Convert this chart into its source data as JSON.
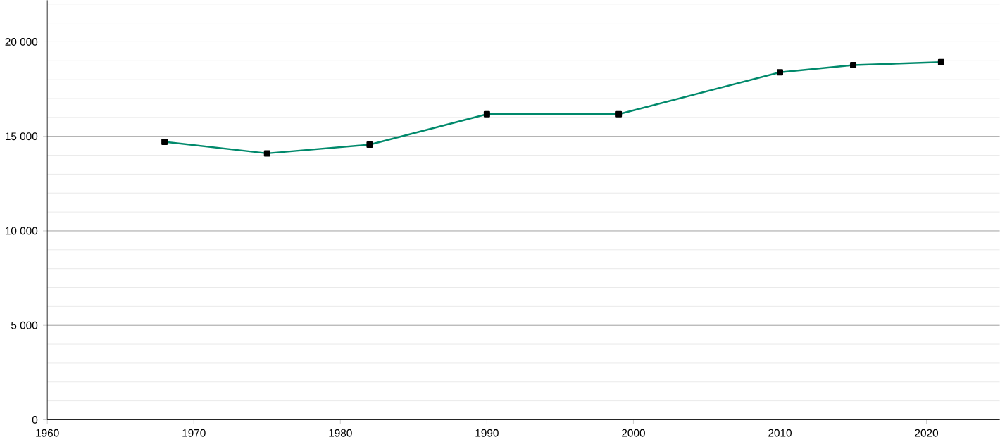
{
  "chart_data": {
    "type": "line",
    "x": [
      1968,
      1975,
      1982,
      1990,
      1999,
      2010,
      2015,
      2021
    ],
    "values": [
      14710,
      14100,
      14560,
      16170,
      16170,
      18390,
      18770,
      18930
    ],
    "color": "#00896b",
    "marker": "square",
    "line_style": "solid",
    "grid": "y",
    "xlim": [
      1960,
      2025
    ],
    "xticks": [
      1960,
      1970,
      1980,
      1990,
      2000,
      2010,
      2020
    ],
    "ylim": [
      0,
      22200
    ],
    "yticks": [
      {
        "value": 0,
        "label": "0"
      },
      {
        "value": 1000,
        "label": null
      },
      {
        "value": 2000,
        "label": null
      },
      {
        "value": 3000,
        "label": null
      },
      {
        "value": 4000,
        "label": null
      },
      {
        "value": 5000,
        "label": "5 000"
      },
      {
        "value": 6000,
        "label": null
      },
      {
        "value": 7000,
        "label": null
      },
      {
        "value": 8000,
        "label": null
      },
      {
        "value": 9000,
        "label": null
      },
      {
        "value": 10000,
        "label": "10 000"
      },
      {
        "value": 11000,
        "label": null
      },
      {
        "value": 12000,
        "label": null
      },
      {
        "value": 13000,
        "label": null
      },
      {
        "value": 14000,
        "label": null
      },
      {
        "value": 15000,
        "label": "15 000"
      },
      {
        "value": 16000,
        "label": null
      },
      {
        "value": 17000,
        "label": null
      },
      {
        "value": 18000,
        "label": null
      },
      {
        "value": 19000,
        "label": null
      },
      {
        "value": 20000,
        "label": "20 000"
      },
      {
        "value": 21000,
        "label": null
      },
      {
        "value": 22000,
        "label": null
      }
    ]
  }
}
